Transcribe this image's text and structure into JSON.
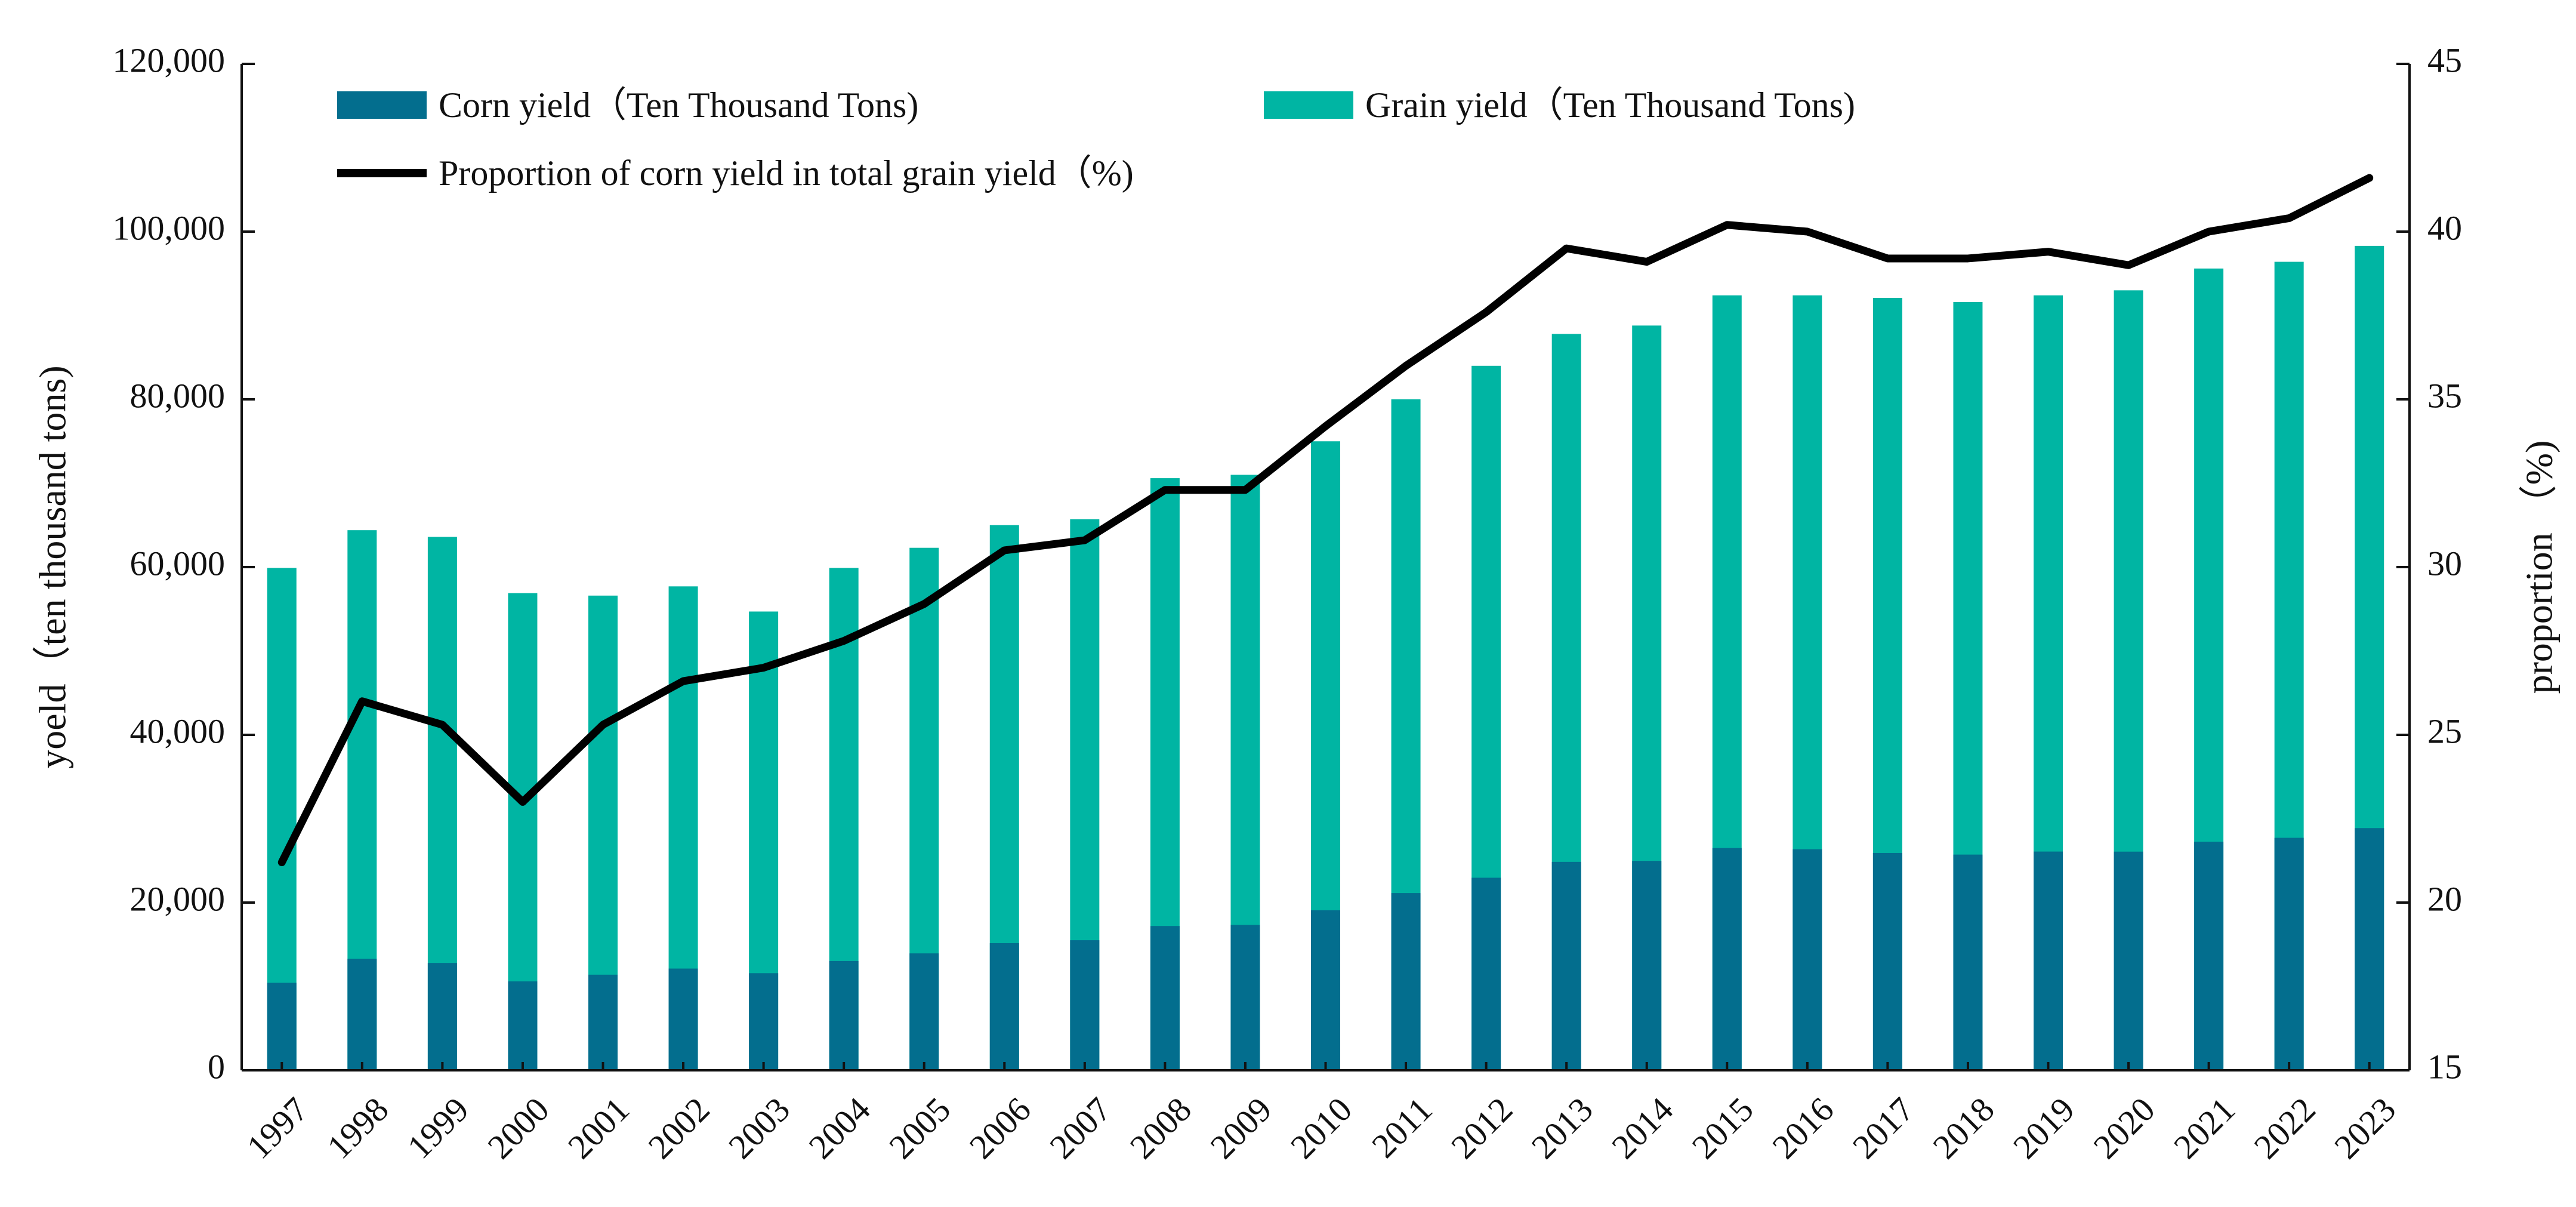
{
  "colors": {
    "corn_bar": "#036E8E",
    "grain_bar": "#00B5A3",
    "proportion_line": "#000000",
    "axis": "#111111"
  },
  "chart_data": {
    "type": "bar",
    "title": "",
    "categories": [
      "1997",
      "1998",
      "1999",
      "2000",
      "2001",
      "2002",
      "2003",
      "2004",
      "2005",
      "2006",
      "2007",
      "2008",
      "2009",
      "2010",
      "2011",
      "2012",
      "2013",
      "2014",
      "2015",
      "2016",
      "2017",
      "2018",
      "2019",
      "2020",
      "2021",
      "2022",
      "2023"
    ],
    "series": [
      {
        "name": "Corn yield（Ten Thousand Tons)",
        "type": "bar",
        "axis": "left",
        "color": "#036E8E",
        "values": [
          10430,
          13300,
          12800,
          10600,
          11400,
          12130,
          11580,
          13030,
          13940,
          15160,
          15510,
          17210,
          17330,
          19080,
          21130,
          22960,
          24850,
          24970,
          26500,
          26360,
          25910,
          25720,
          26080,
          26070,
          27260,
          27720,
          28880
        ]
      },
      {
        "name": "Grain yield（Ten Thousand Tons)",
        "type": "bar",
        "axis": "left",
        "color": "#00B5A3",
        "values": [
          59900,
          64400,
          63600,
          56900,
          56600,
          57700,
          54700,
          59900,
          62300,
          65000,
          65700,
          70600,
          71000,
          75000,
          80000,
          84000,
          87800,
          88800,
          92400,
          92400,
          92100,
          91600,
          92400,
          93000,
          95600,
          96400,
          98300
        ]
      },
      {
        "name": "Proportion of corn yield in total grain yield（%)",
        "type": "line",
        "axis": "right",
        "color": "#000000",
        "values": [
          21.2,
          26.0,
          25.3,
          23.0,
          25.3,
          26.6,
          27.0,
          27.8,
          28.9,
          30.5,
          30.8,
          32.3,
          32.3,
          34.2,
          36.0,
          37.6,
          39.5,
          39.1,
          40.2,
          40.0,
          39.2,
          39.2,
          39.4,
          39.0,
          40.0,
          40.4,
          41.6
        ]
      }
    ],
    "ylabel": "yoeld（ten thousand tons)",
    "y2label": "proportion （%)",
    "xlabel": "",
    "ylim": [
      0,
      120000
    ],
    "y2lim": [
      15,
      45
    ],
    "yticks": [
      "0",
      "20,000",
      "40,000",
      "60,000",
      "80,000",
      "100,000",
      "120,000"
    ],
    "y2ticks": [
      "15",
      "20",
      "25",
      "30",
      "35",
      "40",
      "45"
    ],
    "grid": false,
    "legend_position": "top-left"
  }
}
